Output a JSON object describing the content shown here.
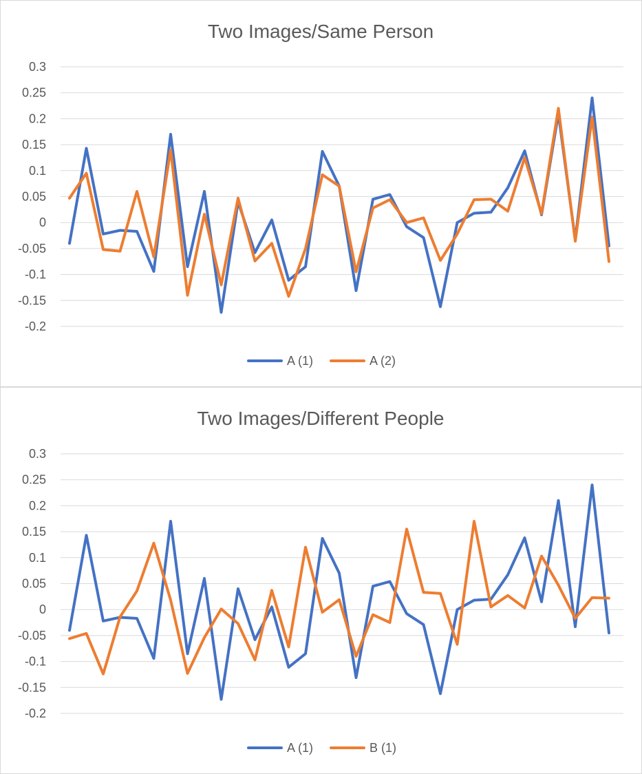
{
  "chart_data": [
    {
      "type": "line",
      "title": "Two Images/Same Person",
      "xlabel": "",
      "ylabel": "",
      "ylim": [
        -0.2,
        0.3
      ],
      "yticks": [
        "0.3",
        "0.25",
        "0.2",
        "0.15",
        "0.1",
        "0.05",
        "0",
        "-0.05",
        "-0.1",
        "-0.15",
        "-0.2"
      ],
      "grid": true,
      "legend": "bottom",
      "x": [
        1,
        2,
        3,
        4,
        5,
        6,
        7,
        8,
        9,
        10,
        11,
        12,
        13,
        14,
        15,
        16,
        17,
        18,
        19,
        20,
        21,
        22,
        23,
        24,
        25,
        26,
        27,
        28,
        29,
        30,
        31,
        32,
        33
      ],
      "series": [
        {
          "name": "A (1)",
          "color": "#4472c4",
          "values": [
            -0.04,
            0.143,
            -0.022,
            -0.015,
            -0.017,
            -0.094,
            0.17,
            -0.085,
            0.06,
            -0.173,
            0.04,
            -0.058,
            0.005,
            -0.111,
            -0.085,
            0.137,
            0.07,
            -0.131,
            0.045,
            0.054,
            -0.008,
            -0.029,
            -0.162,
            0.0,
            0.018,
            0.02,
            0.067,
            0.138,
            0.015,
            0.21,
            -0.033,
            0.24,
            -0.045
          ]
        },
        {
          "name": "A (2)",
          "color": "#ed7d31",
          "values": [
            0.047,
            0.095,
            -0.052,
            -0.055,
            0.06,
            -0.066,
            0.14,
            -0.14,
            0.016,
            -0.12,
            0.047,
            -0.074,
            -0.04,
            -0.142,
            -0.05,
            0.092,
            0.07,
            -0.095,
            0.028,
            0.044,
            0.0,
            0.009,
            -0.073,
            -0.022,
            0.044,
            0.045,
            0.022,
            0.125,
            0.017,
            0.22,
            -0.036,
            0.203,
            -0.075
          ]
        }
      ]
    },
    {
      "type": "line",
      "title": "Two Images/Different People",
      "xlabel": "",
      "ylabel": "",
      "ylim": [
        -0.2,
        0.3
      ],
      "yticks": [
        "0.3",
        "0.25",
        "0.2",
        "0.15",
        "0.1",
        "0.05",
        "0",
        "-0.05",
        "-0.1",
        "-0.15",
        "-0.2"
      ],
      "grid": true,
      "legend": "bottom",
      "x": [
        1,
        2,
        3,
        4,
        5,
        6,
        7,
        8,
        9,
        10,
        11,
        12,
        13,
        14,
        15,
        16,
        17,
        18,
        19,
        20,
        21,
        22,
        23,
        24,
        25,
        26,
        27,
        28,
        29,
        30,
        31,
        32,
        33
      ],
      "series": [
        {
          "name": "A (1)",
          "color": "#4472c4",
          "values": [
            -0.04,
            0.143,
            -0.022,
            -0.015,
            -0.017,
            -0.094,
            0.17,
            -0.085,
            0.06,
            -0.173,
            0.04,
            -0.058,
            0.005,
            -0.111,
            -0.085,
            0.137,
            0.07,
            -0.131,
            0.045,
            0.054,
            -0.008,
            -0.029,
            -0.162,
            0.0,
            0.018,
            0.02,
            0.067,
            0.138,
            0.015,
            0.21,
            -0.033,
            0.24,
            -0.045
          ]
        },
        {
          "name": "B (1)",
          "color": "#ed7d31",
          "values": [
            -0.056,
            -0.046,
            -0.124,
            -0.014,
            0.036,
            0.128,
            0.018,
            -0.123,
            -0.054,
            0.001,
            -0.027,
            -0.097,
            0.037,
            -0.072,
            0.12,
            -0.005,
            0.019,
            -0.09,
            -0.01,
            -0.025,
            0.155,
            0.033,
            0.031,
            -0.067,
            0.17,
            0.005,
            0.027,
            0.003,
            0.103,
            0.047,
            -0.017,
            0.023,
            0.022
          ]
        }
      ]
    }
  ]
}
